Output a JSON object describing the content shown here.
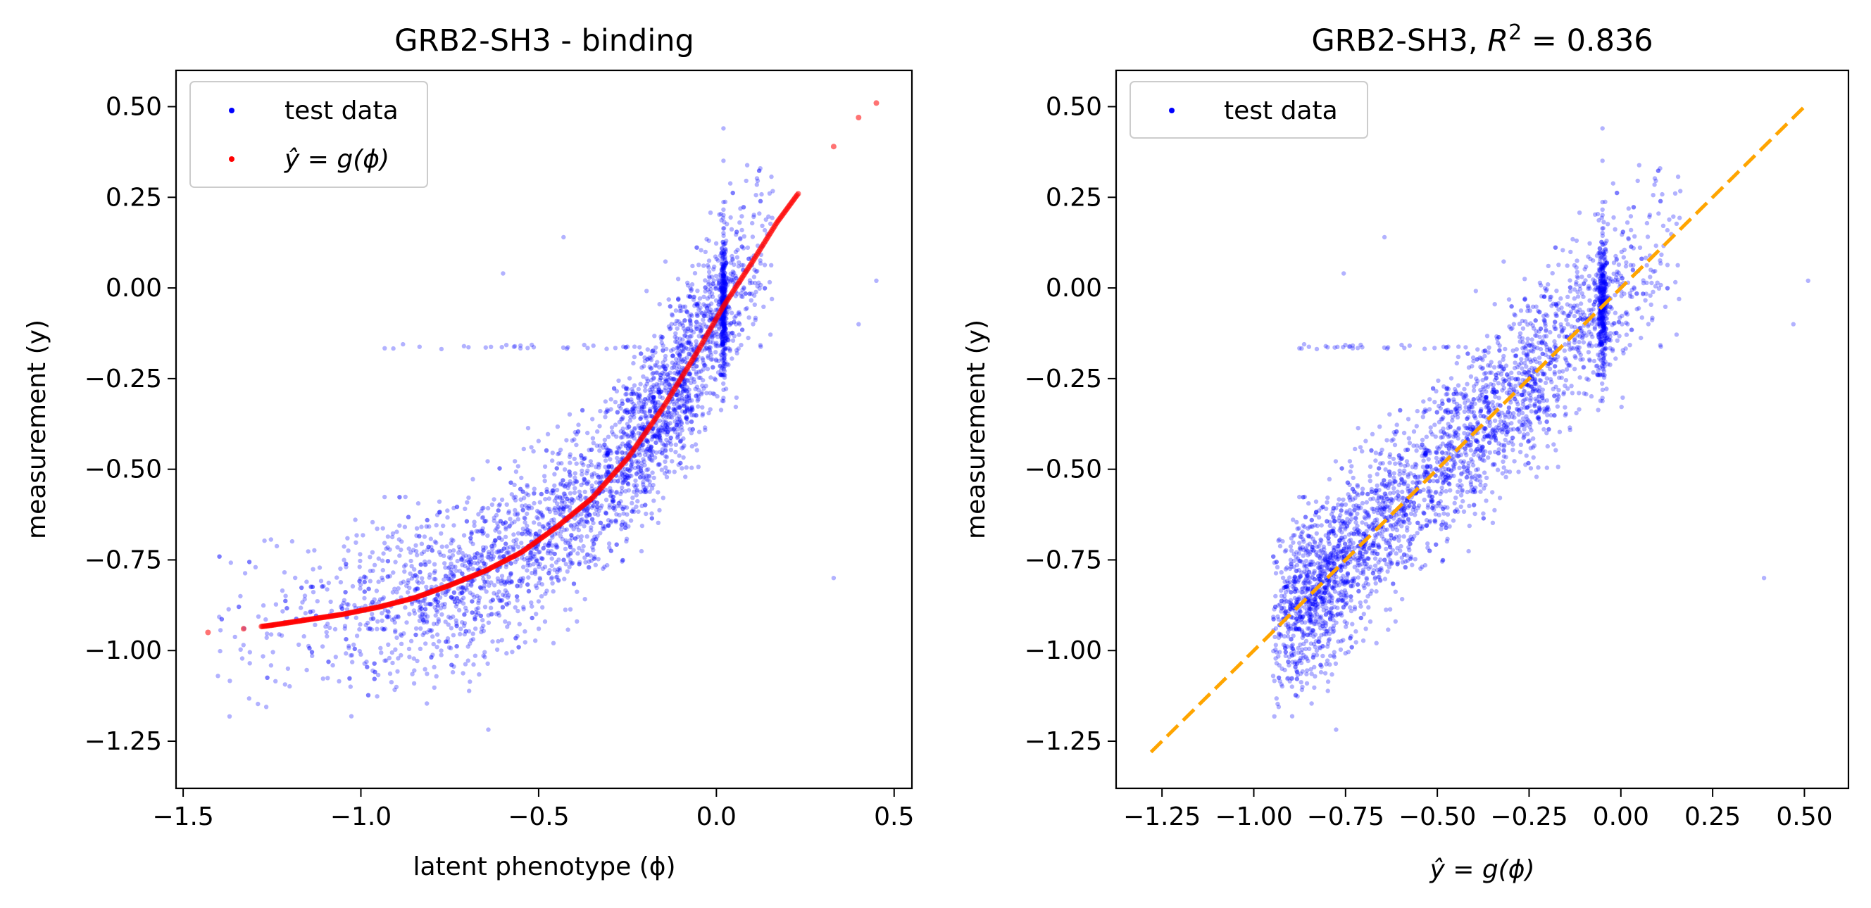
{
  "colors": {
    "test_data": "#0000ff",
    "fit_curve": "#ff0000",
    "diagonal": "#ffa500"
  },
  "chart_data": [
    {
      "type": "scatter",
      "title": "GRB2-SH3 - binding",
      "xlabel": "latent phenotype (ϕ)",
      "ylabel": "measurement (y)",
      "xlim": [
        -1.52,
        0.55
      ],
      "ylim": [
        -1.38,
        0.6
      ],
      "xticks": [
        -1.5,
        -1.0,
        -0.5,
        0.0,
        0.5
      ],
      "xtick_labels": [
        "−1.5",
        "−1.0",
        "−0.5",
        "0.0",
        "0.5"
      ],
      "yticks": [
        0.5,
        0.25,
        0.0,
        -0.25,
        -0.5,
        -0.75,
        -1.0,
        -1.25
      ],
      "ytick_labels": [
        "0.50",
        "0.25",
        "0.00",
        "−0.25",
        "−0.50",
        "−0.75",
        "−1.00",
        "−1.25"
      ],
      "legend_position": "top-left",
      "series": [
        {
          "name": "test data",
          "color": "#0000ff",
          "description_points": "≈ several thousand points, dense cloud following sigmoid trend, vertical stripe at x ≈ 0.02"
        },
        {
          "name": "ŷ = g(ϕ)",
          "color": "#ff0000"
        }
      ],
      "fit_curve": {
        "x": [
          -1.43,
          -1.33,
          -1.25,
          -1.15,
          -1.05,
          -0.95,
          -0.85,
          -0.75,
          -0.65,
          -0.55,
          -0.45,
          -0.35,
          -0.25,
          -0.15,
          -0.05,
          0.02,
          0.1,
          0.17,
          0.23,
          0.33,
          0.4,
          0.45
        ],
        "y": [
          -0.95,
          -0.94,
          -0.93,
          -0.915,
          -0.9,
          -0.88,
          -0.855,
          -0.82,
          -0.78,
          -0.73,
          -0.66,
          -0.58,
          -0.47,
          -0.33,
          -0.17,
          -0.05,
          0.07,
          0.18,
          0.26,
          0.39,
          0.47,
          0.51
        ]
      }
    },
    {
      "type": "scatter",
      "title_prefix": "GRB2-SH3, ",
      "title_r2_symbol": "R",
      "title_r2_exp": "2",
      "title_r2_value": " =  0.836",
      "xlabel": "ŷ = g(ϕ)",
      "ylabel": "measurement (y)",
      "xlim": [
        -1.375,
        0.62
      ],
      "ylim": [
        -1.38,
        0.6
      ],
      "xticks": [
        -1.25,
        -1.0,
        -0.75,
        -0.5,
        -0.25,
        0.0,
        0.25,
        0.5
      ],
      "xtick_labels": [
        "−1.25",
        "−1.00",
        "−0.75",
        "−0.50",
        "−0.25",
        "0.00",
        "0.25",
        "0.50"
      ],
      "yticks": [
        0.5,
        0.25,
        0.0,
        -0.25,
        -0.5,
        -0.75,
        -1.0,
        -1.25
      ],
      "ytick_labels": [
        "0.50",
        "0.25",
        "0.00",
        "−0.25",
        "−0.50",
        "−0.75",
        "−1.00",
        "−1.25"
      ],
      "legend_position": "top-left",
      "series": [
        {
          "name": "test data",
          "color": "#0000ff"
        }
      ],
      "diagonal": {
        "x": [
          -1.28,
          0.51
        ],
        "y": [
          -1.28,
          0.51
        ],
        "style": "dashed",
        "color": "#ffa500"
      }
    }
  ]
}
